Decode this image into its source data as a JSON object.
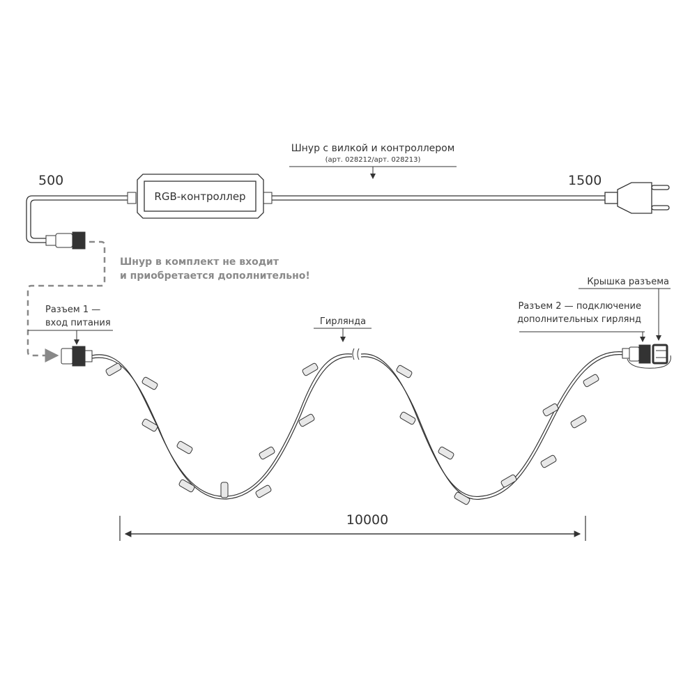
{
  "cord": {
    "title": "Шнур с вилкой и контроллером",
    "article": "(арт. 028212/арт. 028213)",
    "controller_label": "RGB-контроллер",
    "left_length": "500",
    "right_length": "1500"
  },
  "note": {
    "line1": "Шнур в комплект не входит",
    "line2": "и приобретается дополнительно!",
    "color": "#8a8a8a"
  },
  "connector1": {
    "line1": "Разъем 1 —",
    "line2": "вход питания"
  },
  "garland": {
    "label": "Гирлянда",
    "length": "10000"
  },
  "connector2": {
    "line1": "Разъем 2 — подключение",
    "line2": "дополнительных гирлянд"
  },
  "cap": {
    "label": "Крышка разъема"
  }
}
